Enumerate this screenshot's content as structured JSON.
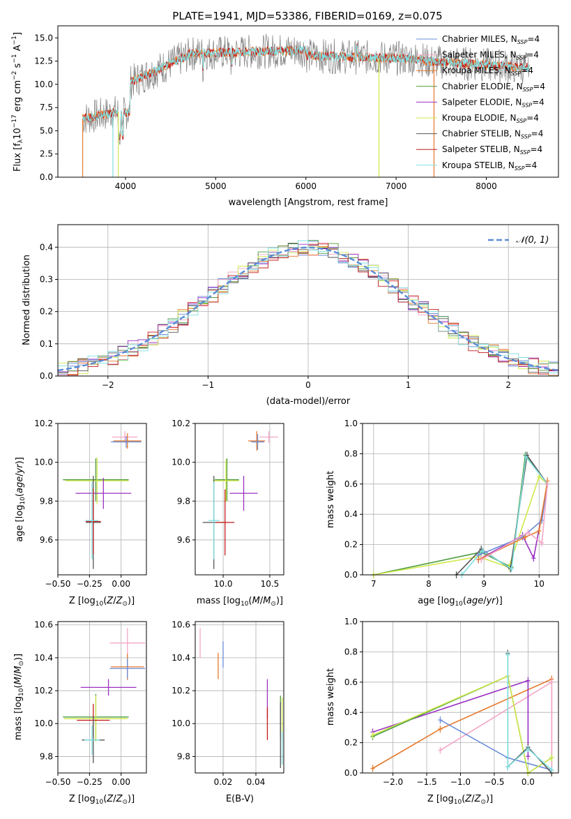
{
  "colors": {
    "chabrier_miles": "#6a8cd8",
    "salpeter_miles": "#f4a6c8",
    "kroupa_miles": "#e6792b",
    "chabrier_elodie": "#4a9a3c",
    "salpeter_elodie": "#9b30c2",
    "kroupa_elodie": "#cfe84a",
    "chabrier_stelib": "#555555",
    "salpeter_stelib": "#c21b1b",
    "kroupa_stelib": "#7fdfe0",
    "normal": "#5b8bd6"
  },
  "chart_data": [
    {
      "id": "spectrum",
      "type": "line",
      "title": "PLATE=1941, MJD=53386, FIBERID=0169, z=0.075",
      "xlabel": "wavelength [Angstrom, rest frame]",
      "ylabel": "Flux [f_λ10^-17 erg cm^-2 s^-1 A^-1]",
      "xlim": [
        3250,
        8800
      ],
      "ylim": [
        0,
        16.3
      ],
      "xticks": [
        4000,
        5000,
        6000,
        7000,
        8000
      ],
      "yticks": [
        0.0,
        2.5,
        5.0,
        7.5,
        10.0,
        12.5,
        15.0
      ],
      "data_range": [
        3525,
        8475
      ],
      "legend": [
        "Chabrier MILES, N_SSP=4",
        "Salpeter MILES, N_SSP=4",
        "Kroupa MILES, N_SSP=4",
        "Chabrier ELODIE, N_SSP=4",
        "Salpeter ELODIE, N_SSP=4",
        "Kroupa ELODIE, N_SSP=4",
        "Chabrier STELIB, N_SSP=4",
        "Salpeter STELIB, N_SSP=4",
        "Kroupa STELIB, N_SSP=4"
      ],
      "legend_placement": "upper right"
    },
    {
      "id": "residuals",
      "type": "histogram",
      "xlabel": "(data-model)/error",
      "ylabel": "Normed distribution",
      "xlim": [
        -2.5,
        2.5
      ],
      "ylim": [
        0,
        0.47
      ],
      "xticks": [
        -2,
        -1,
        0,
        1,
        2
      ],
      "yticks": [
        0.0,
        0.1,
        0.2,
        0.3,
        0.4
      ],
      "legend": [
        "𝒩(0, 1)"
      ],
      "legend_placement": "upper right",
      "grid": true
    },
    {
      "id": "age_vs_Z",
      "type": "errorbar",
      "xlabel": "Z [log10(Z/Z⊙)]",
      "ylabel": "age  [log10(age/yr)]",
      "xlim": [
        -0.5,
        0.2
      ],
      "ylim": [
        9.42,
        10.2
      ],
      "xticks": [
        -0.5,
        -0.25,
        0.0
      ],
      "yticks": [
        9.6,
        9.8,
        10.0,
        10.2
      ],
      "points": [
        {
          "model": "salpeter_miles",
          "x": 0.03,
          "y": 10.13,
          "xerr": 0.1,
          "yerr": 0.03
        },
        {
          "model": "kroupa_miles",
          "x": 0.05,
          "y": 10.11,
          "xerr": 0.11,
          "yerr": 0.04
        },
        {
          "model": "chabrier_miles",
          "x": 0.04,
          "y": 10.105,
          "xerr": 0.12,
          "yerr": 0.03
        },
        {
          "model": "chabrier_elodie",
          "x": -0.2,
          "y": 9.91,
          "xerr": 0.26,
          "yerr": 0.11
        },
        {
          "model": "kroupa_elodie",
          "x": -0.19,
          "y": 9.905,
          "xerr": 0.25,
          "yerr": 0.12
        },
        {
          "model": "salpeter_elodie",
          "x": -0.14,
          "y": 9.84,
          "xerr": 0.22,
          "yerr": 0.08
        },
        {
          "model": "chabrier_stelib",
          "x": -0.22,
          "y": 9.69,
          "xerr": 0.06,
          "yerr": 0.24
        },
        {
          "model": "salpeter_stelib",
          "x": -0.22,
          "y": 9.695,
          "xerr": 0.06,
          "yerr": 0.17
        },
        {
          "model": "kroupa_stelib",
          "x": -0.23,
          "y": 9.7,
          "xerr": 0.05,
          "yerr": 0.2
        }
      ]
    },
    {
      "id": "age_vs_mass",
      "type": "errorbar",
      "xlabel": "mass [log10(M/M⊙)]",
      "ylabel": "",
      "xlim": [
        9.7,
        10.65
      ],
      "ylim": [
        9.42,
        10.2
      ],
      "xticks": [
        10.0,
        10.5
      ],
      "yticks": [
        9.6,
        9.8,
        10.0,
        10.2
      ],
      "points": [
        {
          "model": "salpeter_miles",
          "x": 10.49,
          "y": 10.13,
          "xerr": 0.1,
          "yerr": 0.03
        },
        {
          "model": "kroupa_miles",
          "x": 10.36,
          "y": 10.11,
          "xerr": 0.09,
          "yerr": 0.05
        },
        {
          "model": "chabrier_miles",
          "x": 10.37,
          "y": 10.105,
          "xerr": 0.07,
          "yerr": 0.04
        },
        {
          "model": "chabrier_elodie",
          "x": 10.04,
          "y": 9.91,
          "xerr": 0.13,
          "yerr": 0.11
        },
        {
          "model": "kroupa_elodie",
          "x": 10.03,
          "y": 9.905,
          "xerr": 0.14,
          "yerr": 0.11
        },
        {
          "model": "salpeter_elodie",
          "x": 10.22,
          "y": 9.84,
          "xerr": 0.15,
          "yerr": 0.09
        },
        {
          "model": "chabrier_stelib",
          "x": 9.9,
          "y": 9.69,
          "xerr": 0.12,
          "yerr": 0.24
        },
        {
          "model": "salpeter_stelib",
          "x": 10.02,
          "y": 9.69,
          "xerr": 0.1,
          "yerr": 0.17
        },
        {
          "model": "kroupa_stelib",
          "x": 9.9,
          "y": 9.7,
          "xerr": 0.06,
          "yerr": 0.2
        }
      ]
    },
    {
      "id": "massweight_vs_age",
      "type": "line",
      "xlabel": "age  [log10(age/yr)]",
      "ylabel": "mass weight",
      "xlim": [
        6.8,
        10.35
      ],
      "ylim": [
        0,
        1.0
      ],
      "xticks": [
        7,
        8,
        9,
        10
      ],
      "yticks": [
        0.0,
        0.2,
        0.4,
        0.6,
        0.8,
        1.0
      ],
      "grid": true,
      "series": [
        {
          "model": "chabrier_elodie",
          "x": [
            7.0,
            8.95,
            9.5,
            9.75,
            10.15
          ],
          "y": [
            0.0,
            0.15,
            0.05,
            0.79,
            0.6
          ]
        },
        {
          "model": "kroupa_elodie",
          "x": [
            7.0,
            8.9,
            9.45,
            10.0,
            10.15
          ],
          "y": [
            0.0,
            0.12,
            0.05,
            0.65,
            0.6
          ]
        },
        {
          "model": "chabrier_stelib",
          "x": [
            8.5,
            8.95,
            9.48,
            9.78,
            10.15
          ],
          "y": [
            0.0,
            0.17,
            0.04,
            0.79,
            0.6
          ]
        },
        {
          "model": "kroupa_stelib",
          "x": [
            8.6,
            8.97,
            9.5,
            9.76,
            10.15
          ],
          "y": [
            0.0,
            0.16,
            0.04,
            0.78,
            0.6
          ]
        },
        {
          "model": "salpeter_elodie",
          "x": [
            8.9,
            9.7,
            9.9,
            10.15
          ],
          "y": [
            0.1,
            0.26,
            0.11,
            0.6
          ]
        },
        {
          "model": "chabrier_miles",
          "x": [
            8.9,
            9.7,
            10.05,
            10.15
          ],
          "y": [
            0.13,
            0.25,
            0.36,
            0.6
          ]
        },
        {
          "model": "kroupa_miles",
          "x": [
            8.9,
            9.75,
            10.0,
            10.15
          ],
          "y": [
            0.1,
            0.25,
            0.29,
            0.62
          ]
        },
        {
          "model": "salpeter_miles",
          "x": [
            8.95,
            9.8,
            10.05,
            10.15
          ],
          "y": [
            0.1,
            0.28,
            0.21,
            0.6
          ]
        }
      ]
    },
    {
      "id": "mass_vs_Z",
      "type": "errorbar",
      "xlabel": "Z [log10(Z/Z⊙)]",
      "ylabel": "mass [log10(M/M⊙)]",
      "xlim": [
        -0.5,
        0.2
      ],
      "ylim": [
        9.7,
        10.62
      ],
      "xticks": [
        -0.5,
        -0.25,
        0.0
      ],
      "yticks": [
        9.8,
        10.0,
        10.2,
        10.4,
        10.6
      ],
      "points": [
        {
          "model": "salpeter_miles",
          "x": 0.05,
          "y": 10.49,
          "xerr": 0.14,
          "yerr": 0.09
        },
        {
          "model": "kroupa_miles",
          "x": 0.05,
          "y": 10.345,
          "xerr": 0.13,
          "yerr": 0.08
        },
        {
          "model": "chabrier_miles",
          "x": 0.05,
          "y": 10.335,
          "xerr": 0.14,
          "yerr": 0.06
        },
        {
          "model": "salpeter_elodie",
          "x": -0.1,
          "y": 10.22,
          "xerr": 0.22,
          "yerr": 0.05
        },
        {
          "model": "chabrier_elodie",
          "x": -0.2,
          "y": 10.04,
          "xerr": 0.26,
          "yerr": 0.14
        },
        {
          "model": "kroupa_elodie",
          "x": -0.2,
          "y": 10.03,
          "xerr": 0.25,
          "yerr": 0.14
        },
        {
          "model": "salpeter_stelib",
          "x": -0.22,
          "y": 10.02,
          "xerr": 0.13,
          "yerr": 0.1
        },
        {
          "model": "chabrier_stelib",
          "x": -0.22,
          "y": 9.9,
          "xerr": 0.09,
          "yerr": 0.14
        },
        {
          "model": "kroupa_stelib",
          "x": -0.23,
          "y": 9.9,
          "xerr": 0.06,
          "yerr": 0.09
        }
      ]
    },
    {
      "id": "mass_vs_EBV",
      "type": "errorbar",
      "xlabel": "E(B-V)",
      "ylabel": "",
      "xlim": [
        0.003,
        0.057
      ],
      "ylim": [
        9.7,
        10.62
      ],
      "xticks": [
        0.02,
        0.04
      ],
      "yticks": [
        9.8,
        10.0,
        10.2,
        10.4,
        10.6
      ],
      "points": [
        {
          "model": "salpeter_miles",
          "x": 0.006,
          "y": 10.49,
          "xerr": 0,
          "yerr": 0.09
        },
        {
          "model": "kroupa_miles",
          "x": 0.017,
          "y": 10.35,
          "xerr": 0,
          "yerr": 0.08
        },
        {
          "model": "chabrier_miles",
          "x": 0.02,
          "y": 10.42,
          "xerr": 0,
          "yerr": 0.08
        },
        {
          "model": "salpeter_elodie",
          "x": 0.047,
          "y": 10.15,
          "xerr": 0,
          "yerr": 0.12
        },
        {
          "model": "salpeter_stelib",
          "x": 0.047,
          "y": 10.0,
          "xerr": 0,
          "yerr": 0.1
        },
        {
          "model": "chabrier_elodie",
          "x": 0.055,
          "y": 10.04,
          "xerr": 0,
          "yerr": 0.13
        },
        {
          "model": "kroupa_elodie",
          "x": 0.056,
          "y": 10.03,
          "xerr": 0,
          "yerr": 0.13
        },
        {
          "model": "chabrier_stelib",
          "x": 0.055,
          "y": 9.93,
          "xerr": 0,
          "yerr": 0.2
        },
        {
          "model": "kroupa_stelib",
          "x": 0.056,
          "y": 9.85,
          "xerr": 0,
          "yerr": 0.1
        }
      ]
    },
    {
      "id": "massweight_vs_Z",
      "type": "line",
      "xlabel": "Z [log10(Z/Z⊙)]",
      "ylabel": "mass weight",
      "xlim": [
        -2.45,
        0.45
      ],
      "ylim": [
        0,
        1.0
      ],
      "xticks": [
        -2.0,
        -1.5,
        -1.0,
        -0.5,
        0.0
      ],
      "yticks": [
        0.0,
        0.2,
        0.4,
        0.6,
        0.8,
        1.0
      ],
      "grid": true,
      "series": [
        {
          "model": "kroupa_miles",
          "x": [
            -2.3,
            -1.3,
            0.35,
            0.35
          ],
          "y": [
            0.03,
            0.29,
            0.62,
            0.0
          ]
        },
        {
          "model": "salpeter_miles",
          "x": [
            -1.3,
            0.35,
            0.35
          ],
          "y": [
            0.15,
            0.6,
            0.02
          ]
        },
        {
          "model": "chabrier_miles",
          "x": [
            -1.3,
            -0.3,
            0.35
          ],
          "y": [
            0.35,
            0.1,
            0.02
          ]
        },
        {
          "model": "salpeter_elodie",
          "x": [
            -2.3,
            0.0,
            0.0
          ],
          "y": [
            0.27,
            0.61,
            0.11
          ]
        },
        {
          "model": "chabrier_elodie",
          "x": [
            -2.3,
            -0.3,
            0.0,
            0.35
          ],
          "y": [
            0.24,
            0.64,
            0.0,
            0.1
          ]
        },
        {
          "model": "kroupa_elodie",
          "x": [
            -2.3,
            -0.3,
            0.0,
            0.35
          ],
          "y": [
            0.25,
            0.64,
            0.0,
            0.1
          ]
        },
        {
          "model": "chabrier_stelib",
          "x": [
            -0.3,
            -0.3,
            0.0,
            0.35
          ],
          "y": [
            0.79,
            0.04,
            0.17,
            0.0
          ]
        },
        {
          "model": "kroupa_stelib",
          "x": [
            -0.3,
            -0.3,
            0.0,
            0.35
          ],
          "y": [
            0.78,
            0.04,
            0.16,
            0.02
          ]
        }
      ]
    }
  ]
}
